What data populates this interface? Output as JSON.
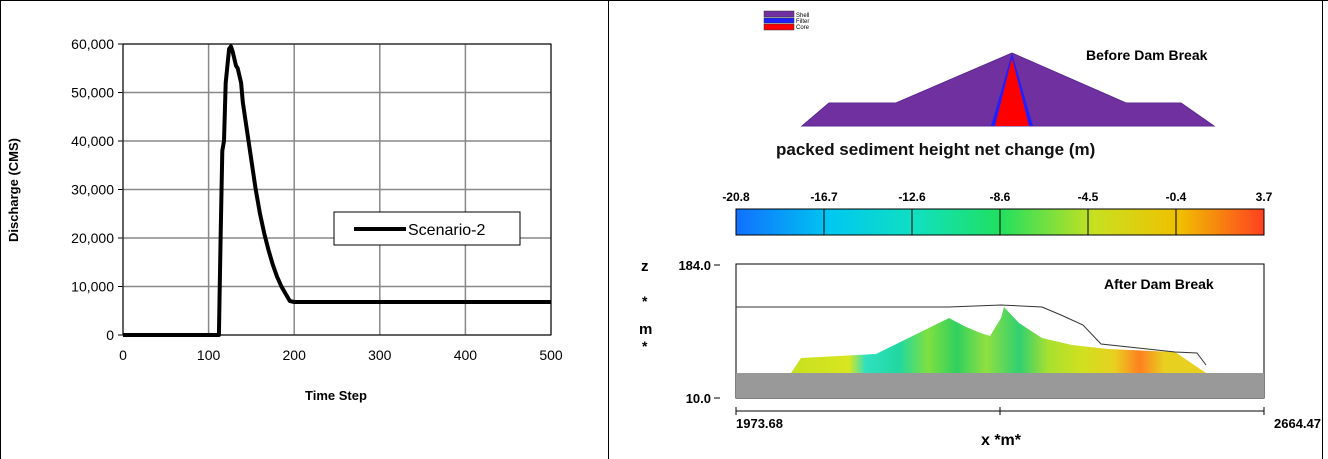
{
  "chart_data": [
    {
      "type": "line",
      "xlabel": "Time Step",
      "ylabel": "Discharge (CMS)",
      "xlim": [
        0,
        500
      ],
      "ylim": [
        0,
        60000
      ],
      "xticks": [
        "0",
        "100",
        "200",
        "300",
        "400",
        "500"
      ],
      "yticks": [
        "0",
        "10,000",
        "20,000",
        "30,000",
        "40,000",
        "50,000",
        "60,000"
      ],
      "grid": true,
      "legend": "center-right",
      "series": [
        {
          "name": "Scenario-2",
          "x": [
            0,
            112,
            114,
            116,
            118,
            120,
            124,
            126,
            128,
            130,
            132,
            134,
            138,
            140,
            145,
            150,
            155,
            160,
            165,
            170,
            175,
            180,
            185,
            190,
            195,
            200,
            300,
            400,
            500
          ],
          "y": [
            0,
            0,
            20000,
            38000,
            40000,
            52000,
            59000,
            59500,
            58500,
            57000,
            55500,
            55000,
            52000,
            48000,
            42000,
            36000,
            30000,
            25000,
            21000,
            17500,
            14500,
            12000,
            10000,
            8500,
            7000,
            6800,
            6800,
            6800,
            6800
          ]
        }
      ]
    },
    {
      "type": "heatmap",
      "title": "packed sediment height net change (m)",
      "colorbar_ticks": [
        "-20.8",
        "-16.7",
        "-12.6",
        "-8.6",
        "-4.5",
        "-0.4",
        "3.7"
      ],
      "colorbar_range": [
        -20.8,
        3.7
      ],
      "xlabel": "x *m*",
      "ylabel": "z *m*",
      "xlim": [
        1973.68,
        2664.47
      ],
      "ylim": [
        10.0,
        184.0
      ],
      "xticks": [
        "1973.68",
        "2664.47"
      ],
      "yticks": [
        "184.0",
        "10.0"
      ],
      "legend": [
        "Shell",
        "Filter",
        "Core"
      ]
    }
  ],
  "dam_diagram": {
    "title": "Before Dam Break",
    "legend": [
      {
        "label": "Shell",
        "color": "#7030a0"
      },
      {
        "label": "Filter",
        "color": "#1f1fff"
      },
      {
        "label": "Core",
        "color": "#ff0000"
      }
    ]
  },
  "sediment_plot": {
    "title": "After Dam Break",
    "zlabel": [
      "z",
      "*",
      "m",
      "*"
    ]
  },
  "colors": {
    "line": "#000000",
    "shell": "#7030a0",
    "core": "#ff0000",
    "bed": "#999999"
  }
}
